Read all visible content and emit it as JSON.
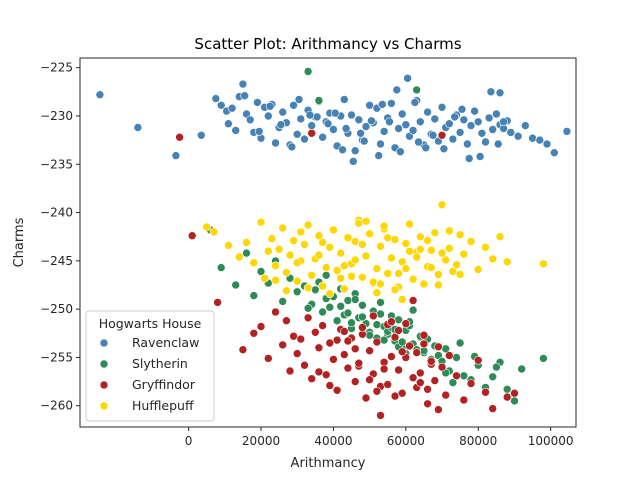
{
  "chart_data": {
    "type": "scatter",
    "title": "Scatter Plot: Arithmancy vs Charms",
    "xlabel": "Arithmancy",
    "ylabel": "Charms",
    "xlim": [
      -30000,
      107000
    ],
    "ylim": [
      -262.2,
      -224.0
    ],
    "xticks": [
      0,
      20000,
      40000,
      60000,
      80000,
      100000
    ],
    "xtick_labels": [
      "0",
      "20000",
      "40000",
      "60000",
      "80000",
      "100000"
    ],
    "yticks": [
      -260,
      -255,
      -250,
      -245,
      -240,
      -235,
      -230,
      -225
    ],
    "ytick_labels": [
      "−260",
      "−255",
      "−250",
      "−245",
      "−240",
      "−235",
      "−230",
      "−225"
    ],
    "grid": false,
    "legend": {
      "title": "Hogwarts House",
      "placement": "lower-left",
      "entries": [
        "Ravenclaw",
        "Slytherin",
        "Gryffindor",
        "Hufflepuff"
      ]
    },
    "series": [
      {
        "name": "Ravenclaw",
        "color": "#4682b4",
        "x": [
          -24500,
          -14000,
          -3500,
          3500,
          7500,
          9000,
          10500,
          11000,
          12000,
          13000,
          14000,
          15000,
          16000,
          17000,
          18000,
          19000,
          20000,
          21000,
          22000,
          23000,
          24000,
          25000,
          26000,
          27000,
          28000,
          29000,
          30000,
          31000,
          32000,
          33000,
          34000,
          35000,
          36000,
          37000,
          38000,
          39000,
          40000,
          41000,
          42000,
          43000,
          44000,
          45000,
          46000,
          47000,
          48000,
          49000,
          50000,
          51000,
          52000,
          53000,
          54000,
          55000,
          56000,
          57000,
          58000,
          59000,
          60000,
          61000,
          62000,
          63000,
          64000,
          65000,
          66000,
          67000,
          68000,
          69000,
          70000,
          71000,
          72000,
          73000,
          74000,
          75000,
          76000,
          77000,
          78000,
          79000,
          80000,
          81000,
          82000,
          83000,
          84000,
          85000,
          86000,
          87000,
          88000,
          89000,
          91000,
          93000,
          95000,
          97000,
          99000,
          101000,
          104500,
          15500,
          19500,
          25500,
          35500,
          45500,
          55500,
          60500,
          65500,
          75500,
          85500,
          50500,
          40500,
          30500,
          70500,
          80500,
          62500,
          58500,
          48500,
          38500,
          28500,
          22500,
          33500,
          43500,
          53500,
          63500,
          73500,
          83500,
          52500,
          47500,
          42500,
          57500,
          67500,
          77500,
          86000,
          87000
        ],
        "y": [
          -227.8,
          -231.2,
          -234.1,
          -232.0,
          -228.2,
          -228.9,
          -229.5,
          -230.8,
          -229.2,
          -231.5,
          -228.0,
          -226.7,
          -229.8,
          -230.4,
          -231.7,
          -228.6,
          -232.3,
          -229.1,
          -230.0,
          -228.8,
          -232.8,
          -231.2,
          -229.6,
          -230.7,
          -233.0,
          -228.9,
          -231.9,
          -230.3,
          -232.4,
          -229.4,
          -231.0,
          -230.1,
          -228.5,
          -232.2,
          -230.6,
          -229.7,
          -231.4,
          -233.1,
          -230.0,
          -228.3,
          -231.8,
          -229.9,
          -233.6,
          -230.4,
          -232.5,
          -231.1,
          -228.9,
          -230.7,
          -229.2,
          -232.9,
          -231.6,
          -230.2,
          -228.7,
          -233.3,
          -231.3,
          -229.8,
          -230.9,
          -232.1,
          -231.5,
          -228.4,
          -230.6,
          -233.0,
          -229.6,
          -231.9,
          -230.3,
          -232.6,
          -229.1,
          -231.2,
          -230.8,
          -232.4,
          -229.9,
          -231.7,
          -230.4,
          -232.9,
          -231.0,
          -229.5,
          -230.6,
          -231.8,
          -232.7,
          -230.2,
          -231.4,
          -229.8,
          -230.9,
          -231.3,
          -230.5,
          -231.7,
          -232.1,
          -231.0,
          -232.3,
          -232.5,
          -232.9,
          -233.8,
          -231.6,
          -227.9,
          -231.6,
          -230.9,
          -230.1,
          -234.7,
          -230.6,
          -226.1,
          -233.3,
          -229.3,
          -232.9,
          -230.5,
          -229.7,
          -228.3,
          -233.4,
          -234.2,
          -228.6,
          -233.7,
          -232.6,
          -230.8,
          -233.2,
          -229.0,
          -229.9,
          -231.3,
          -228.8,
          -232.7,
          -230.1,
          -227.5,
          -234.1,
          -231.8,
          -233.5,
          -227.3,
          -232.0,
          -234.4,
          -227.6,
          -230.6
        ],
        "marker_count": 128
      },
      {
        "name": "Slytherin",
        "color": "#2e8b57",
        "x": [
          6000,
          9000,
          13000,
          16000,
          18000,
          20000,
          22000,
          24000,
          26000,
          28000,
          30000,
          32000,
          33000,
          34000,
          35000,
          36000,
          37000,
          38000,
          39000,
          40000,
          41000,
          42000,
          43000,
          44000,
          45000,
          46000,
          47000,
          48000,
          49000,
          50000,
          51000,
          52000,
          53000,
          54000,
          55000,
          56000,
          57000,
          58000,
          59000,
          60000,
          61000,
          62000,
          63000,
          64000,
          65000,
          66000,
          67000,
          68000,
          69000,
          70000,
          71000,
          72000,
          74000,
          76000,
          78000,
          80000,
          82000,
          84000,
          86000,
          88000,
          90000,
          92000,
          98000,
          33000,
          36000,
          62000,
          64000,
          75000,
          79000,
          85000,
          45000,
          55000,
          65000,
          48000,
          52000,
          58000,
          38000,
          42000,
          44000,
          50000,
          54000,
          60000,
          70000,
          56000,
          46000,
          53000,
          57000,
          59000,
          61000,
          63000,
          67000,
          71000,
          73000
        ],
        "y": [
          -241.8,
          -245.7,
          -247.5,
          -244.2,
          -248.6,
          -246.1,
          -247.3,
          -245.0,
          -249.2,
          -246.8,
          -248.2,
          -247.6,
          -225.4,
          -249.5,
          -248.0,
          -228.4,
          -250.3,
          -246.5,
          -249.8,
          -248.7,
          -251.2,
          -247.9,
          -250.6,
          -249.1,
          -252.0,
          -248.4,
          -250.9,
          -249.6,
          -251.5,
          -252.4,
          -250.2,
          -253.0,
          -249.3,
          -251.8,
          -252.6,
          -250.7,
          -253.3,
          -251.1,
          -254.0,
          -252.2,
          -251.7,
          -253.6,
          -227.3,
          -252.9,
          -254.5,
          -253.1,
          -255.2,
          -253.8,
          -254.8,
          -255.6,
          -254.1,
          -256.4,
          -255.0,
          -256.9,
          -257.3,
          -255.8,
          -258.1,
          -257.0,
          -255.5,
          -258.3,
          -259.5,
          -256.2,
          -255.1,
          -249.9,
          -247.2,
          -250.1,
          -252.8,
          -253.5,
          -254.9,
          -256.0,
          -251.4,
          -252.3,
          -254.3,
          -250.8,
          -251.6,
          -253.9,
          -248.9,
          -249.7,
          -250.4,
          -252.7,
          -253.2,
          -254.6,
          -255.4,
          -251.9,
          -249.0,
          -250.5,
          -252.1,
          -253.4,
          -251.3,
          -254.2,
          -255.7,
          -256.6,
          -257.6
        ],
        "marker_count": 93
      },
      {
        "name": "Gryffindor",
        "color": "#b22222",
        "x": [
          -2500,
          1000,
          8000,
          15000,
          18000,
          20000,
          22000,
          24000,
          26000,
          27000,
          28000,
          29000,
          30000,
          31000,
          32000,
          33000,
          34000,
          35000,
          36000,
          37000,
          38000,
          39000,
          40000,
          41000,
          42000,
          43000,
          44000,
          45000,
          46000,
          47000,
          48000,
          49000,
          50000,
          51000,
          52000,
          53000,
          54000,
          55000,
          56000,
          57000,
          58000,
          59000,
          60000,
          61000,
          62000,
          63000,
          64000,
          65000,
          66000,
          67000,
          68000,
          69000,
          70000,
          71000,
          72000,
          74000,
          76000,
          78000,
          80000,
          82000,
          84000,
          88000,
          90000,
          34000,
          53000,
          70000,
          44000,
          48000,
          58000,
          62000,
          39000,
          43000,
          46000,
          51000,
          55000,
          57000,
          60000,
          63000,
          65000,
          67000,
          36000,
          41000,
          50000,
          56000,
          59000,
          64000,
          66000,
          69000,
          47000,
          52000,
          54000
        ],
        "y": [
          -232.2,
          -242.4,
          -249.3,
          -254.2,
          -252.5,
          -251.8,
          -255.1,
          -250.3,
          -253.7,
          -251.2,
          -256.4,
          -252.8,
          -254.6,
          -253.1,
          -255.8,
          -250.9,
          -257.2,
          -252.4,
          -254.0,
          -251.7,
          -256.8,
          -253.5,
          -255.2,
          -258.4,
          -252.1,
          -254.7,
          -256.1,
          -253.0,
          -257.5,
          -255.9,
          -252.6,
          -259.2,
          -254.3,
          -256.7,
          -253.4,
          -258.0,
          -255.5,
          -257.8,
          -254.9,
          -252.9,
          -256.3,
          -258.7,
          -255.0,
          -253.8,
          -257.1,
          -254.5,
          -256.6,
          -252.7,
          -258.3,
          -255.7,
          -257.4,
          -253.9,
          -256.0,
          -258.9,
          -254.8,
          -256.9,
          -259.4,
          -257.7,
          -255.3,
          -258.6,
          -260.3,
          -259.1,
          -258.7,
          -231.8,
          -261.0,
          -232.0,
          -253.3,
          -251.9,
          -252.2,
          -249.1,
          -257.9,
          -252.3,
          -254.1,
          -250.7,
          -251.6,
          -259.0,
          -251.5,
          -258.1,
          -253.6,
          -255.4,
          -256.5,
          -253.2,
          -257.3,
          -251.3,
          -254.4,
          -257.6,
          -259.8,
          -260.4,
          -255.6,
          -258.5,
          -256.2
        ],
        "marker_count": 91
      },
      {
        "name": "Hufflepuff",
        "color": "#ffd700",
        "x": [
          5000,
          7000,
          11000,
          14000,
          16000,
          18000,
          20000,
          21000,
          22000,
          23000,
          24000,
          25000,
          26000,
          27000,
          28000,
          29000,
          30000,
          31000,
          32000,
          33000,
          34000,
          35000,
          36000,
          37000,
          38000,
          39000,
          40000,
          41000,
          42000,
          43000,
          44000,
          45000,
          46000,
          47000,
          48000,
          49000,
          50000,
          51000,
          52000,
          53000,
          54000,
          55000,
          56000,
          57000,
          58000,
          59000,
          60000,
          61000,
          62000,
          63000,
          64000,
          65000,
          66000,
          67000,
          68000,
          69000,
          70000,
          71000,
          72000,
          73000,
          74000,
          75000,
          76000,
          78000,
          80000,
          82000,
          84000,
          86000,
          88000,
          98000,
          27000,
          33000,
          39000,
          45000,
          51000,
          57000,
          63000,
          69000,
          75000,
          31000,
          37000,
          43000,
          49000,
          55000,
          61000,
          67000,
          24000,
          30000,
          36000,
          42000,
          48000,
          54000,
          60000,
          66000,
          72000,
          46000,
          52000,
          58000,
          64000,
          70000,
          47000,
          53000,
          59000
        ],
        "y": [
          -241.5,
          -242.0,
          -243.4,
          -244.6,
          -243.1,
          -245.2,
          -241.0,
          -246.8,
          -244.0,
          -242.7,
          -245.5,
          -243.8,
          -241.6,
          -246.2,
          -244.4,
          -242.9,
          -247.1,
          -245.0,
          -243.3,
          -241.3,
          -246.5,
          -244.8,
          -242.4,
          -247.6,
          -245.7,
          -243.6,
          -241.8,
          -246.0,
          -244.2,
          -247.9,
          -242.6,
          -245.3,
          -243.0,
          -240.8,
          -246.7,
          -244.5,
          -242.2,
          -247.3,
          -245.8,
          -243.5,
          -241.7,
          -246.3,
          -244.7,
          -242.8,
          -247.7,
          -245.1,
          -243.2,
          -241.2,
          -246.9,
          -244.1,
          -242.5,
          -247.4,
          -245.6,
          -243.9,
          -242.1,
          -246.4,
          -239.2,
          -244.9,
          -243.7,
          -246.1,
          -245.4,
          -242.3,
          -244.3,
          -243.0,
          -245.9,
          -243.6,
          -244.8,
          -242.5,
          -245.1,
          -245.3,
          -248.1,
          -247.8,
          -248.4,
          -246.6,
          -247.2,
          -248.0,
          -244.6,
          -247.5,
          -246.4,
          -242.0,
          -243.1,
          -245.5,
          -240.9,
          -242.6,
          -244.0,
          -245.7,
          -247.0,
          -245.2,
          -244.4,
          -246.8,
          -243.3,
          -241.4,
          -245.8,
          -242.9,
          -241.9,
          -244.9,
          -248.3,
          -246.3,
          -243.8,
          -244.2,
          -241.1,
          -247.4,
          -249.0
        ],
        "marker_count": 103
      }
    ]
  }
}
